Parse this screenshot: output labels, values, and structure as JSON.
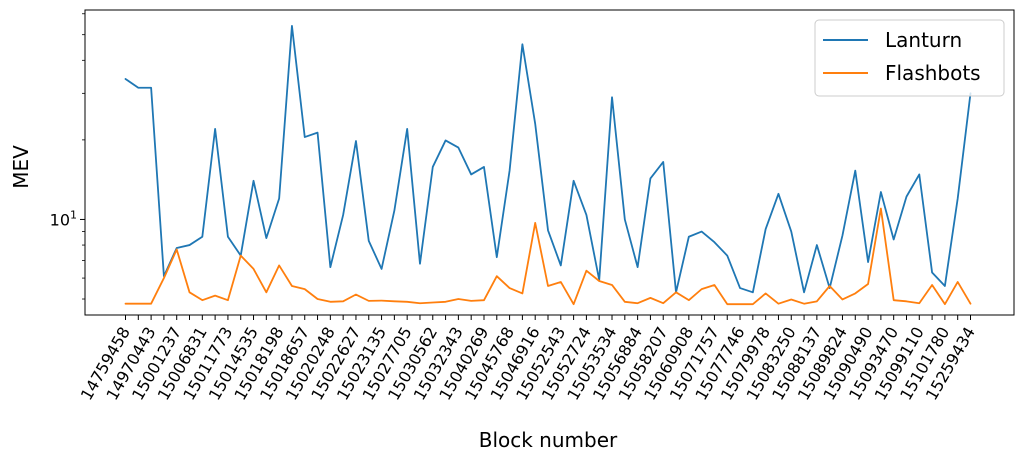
{
  "chart_data": {
    "type": "line",
    "title": "",
    "xlabel": "Block number",
    "ylabel": "MEV",
    "yscale": "log",
    "ylim": [
      4.35,
      62
    ],
    "y_tick_labels": [
      {
        "base": "10",
        "exp": "1",
        "value": 10
      }
    ],
    "grid": false,
    "legend_position": "top-right",
    "colors": {
      "Lanturn": "#1f77b4",
      "Flashbots": "#ff7f0e"
    },
    "x_tick_labels": [
      "14759458",
      "14970443",
      "15001237",
      "15006831",
      "15011773",
      "15014535",
      "15018198",
      "15018657",
      "15020248",
      "15022627",
      "15023135",
      "15027705",
      "15030562",
      "15032343",
      "15040269",
      "15045768",
      "15046916",
      "15052543",
      "15052724",
      "15053534",
      "15056884",
      "15058207",
      "15060908",
      "15071757",
      "15077746",
      "15079978",
      "15083250",
      "15088137",
      "15089824",
      "15090490",
      "15093470",
      "15099110",
      "15101780",
      "15259434"
    ],
    "series": [
      {
        "name": "Lanturn",
        "values": [
          34,
          31.5,
          31.5,
          6.1,
          7.8,
          8.0,
          8.6,
          22.0,
          8.6,
          7.3,
          14.0,
          8.5,
          12.0,
          54.0,
          20.5,
          21.3,
          6.6,
          10.4,
          19.8,
          8.3,
          6.5,
          10.8,
          22.0,
          6.8,
          15.8,
          19.9,
          18.7,
          14.8,
          15.8,
          7.2,
          15.3,
          46.0,
          23.0,
          9.1,
          6.7,
          14.0,
          10.4,
          5.9,
          29.0,
          10.0,
          6.6,
          14.3,
          16.5,
          5.3,
          8.6,
          9.0,
          8.2,
          7.3,
          5.5,
          5.3,
          9.2,
          12.5,
          9.0,
          5.3,
          8.0,
          5.5,
          8.7,
          15.3,
          6.9,
          12.7,
          8.4,
          12.2,
          14.8,
          6.3,
          5.6,
          12.0,
          30.0
        ],
        "labels": [
          "14759458",
          "",
          "14970443",
          "",
          "15001237",
          "",
          "15006831",
          "",
          "15011773",
          "",
          "15014535",
          "",
          "15018198",
          "",
          "15018657",
          "",
          "15020248",
          "",
          "15022627",
          "",
          "15023135",
          "",
          "15027705",
          "",
          "15030562",
          "",
          "15032343",
          "",
          "15040269",
          "",
          "15045768",
          "",
          "15046916",
          "",
          "15052543",
          "",
          "15052724",
          "",
          "15053534",
          "",
          "15056884",
          "",
          "15058207",
          "",
          "15060908",
          "",
          "15071757",
          "",
          "15077746",
          "",
          "15079978",
          "",
          "15083250",
          "",
          "15088137",
          "",
          "15089824",
          "",
          "15090490",
          "",
          "15093470",
          "",
          "15099110",
          "",
          "15101780",
          "",
          "15259434"
        ]
      },
      {
        "name": "Flashbots",
        "values": [
          4.8,
          4.8,
          4.8,
          6.0,
          7.7,
          5.3,
          4.95,
          5.15,
          4.95,
          7.3,
          6.5,
          5.3,
          6.7,
          5.6,
          5.45,
          5.0,
          4.88,
          4.9,
          5.2,
          4.92,
          4.93,
          4.9,
          4.88,
          4.82,
          4.85,
          4.88,
          5.0,
          4.92,
          4.95,
          6.1,
          5.5,
          5.25,
          9.7,
          5.6,
          5.8,
          4.78,
          6.4,
          5.85,
          5.65,
          4.88,
          4.82,
          5.05,
          4.82,
          5.3,
          4.95,
          5.45,
          5.65,
          4.78,
          4.78,
          4.78,
          5.25,
          4.8,
          4.98,
          4.8,
          4.9,
          5.6,
          4.98,
          5.25,
          5.7,
          11.0,
          4.95,
          4.9,
          4.82,
          5.65,
          4.78,
          5.8,
          4.8
        ]
      }
    ]
  }
}
